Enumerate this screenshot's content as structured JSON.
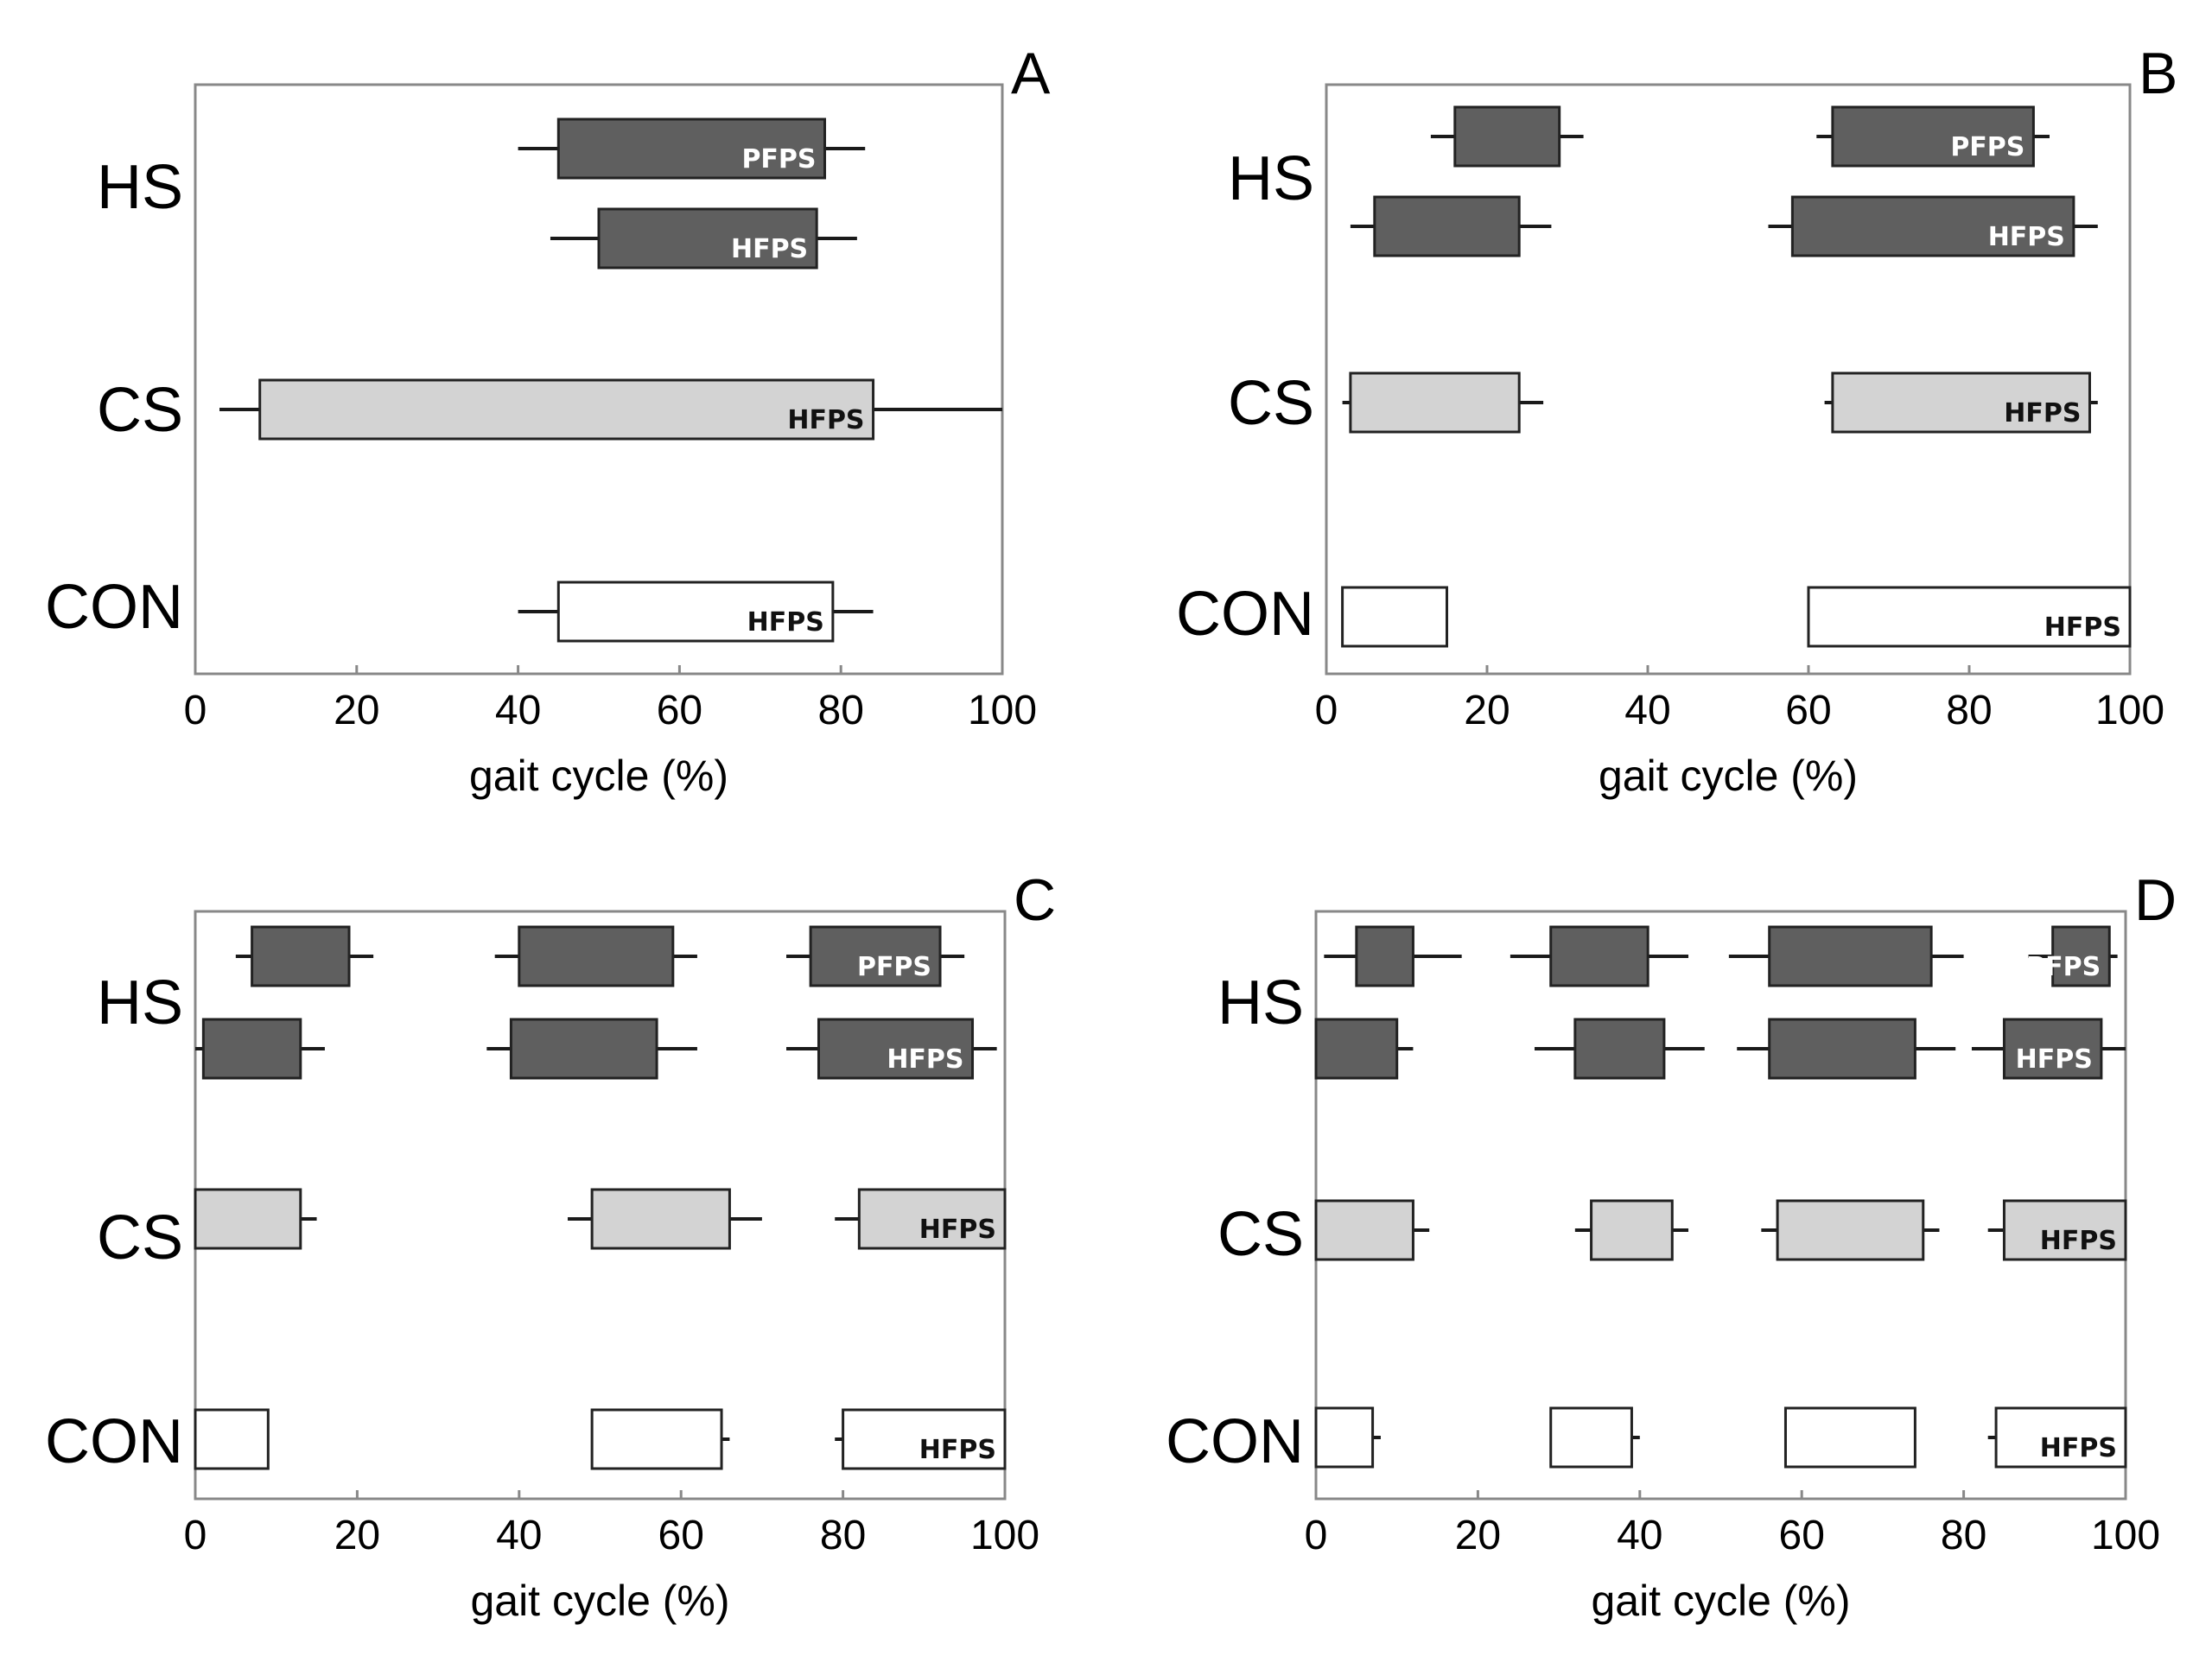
{
  "colors": {
    "HS": "#5f5f5f",
    "CS": "#d3d3d3",
    "CON": "#ffffff",
    "frame": "#888888",
    "whisker": "#1a1a1a"
  },
  "groups": [
    "HS",
    "CS",
    "CON"
  ],
  "chart_data": [
    {
      "panel": "A",
      "type": "bar",
      "xlabel": "gait cycle (%)",
      "xlim": [
        0,
        100
      ],
      "xticks": [
        "0",
        "20",
        "40",
        "60",
        "80",
        "100"
      ],
      "grid": false,
      "rows": [
        {
          "group": "HS",
          "label": "PFPS",
          "segments": [
            {
              "lo": 40,
              "start": 45,
              "end": 78,
              "hi": 83
            }
          ]
        },
        {
          "group": "HS",
          "label": "HFPS",
          "segments": [
            {
              "lo": 44,
              "start": 50,
              "end": 77,
              "hi": 82
            }
          ]
        },
        {
          "group": "CS",
          "label": "HFPS",
          "segments": [
            {
              "lo": 3,
              "start": 8,
              "end": 84,
              "hi": 100
            }
          ]
        },
        {
          "group": "CON",
          "label": "HFPS",
          "segments": [
            {
              "lo": 40,
              "start": 45,
              "end": 79,
              "hi": 84
            }
          ]
        }
      ]
    },
    {
      "panel": "B",
      "type": "bar",
      "xlabel": "gait cycle (%)",
      "xlim": [
        0,
        100
      ],
      "xticks": [
        "0",
        "20",
        "40",
        "60",
        "80",
        "100"
      ],
      "grid": false,
      "rows": [
        {
          "group": "HS",
          "label": "PFPS",
          "segments": [
            {
              "lo": 13,
              "start": 16,
              "end": 29,
              "hi": 32
            },
            {
              "lo": 61,
              "start": 63,
              "end": 88,
              "hi": 90
            }
          ]
        },
        {
          "group": "HS",
          "label": "HFPS",
          "segments": [
            {
              "lo": 3,
              "start": 6,
              "end": 24,
              "hi": 28
            },
            {
              "lo": 55,
              "start": 58,
              "end": 93,
              "hi": 96
            }
          ]
        },
        {
          "group": "CS",
          "label": "HFPS",
          "segments": [
            {
              "lo": 2,
              "start": 3,
              "end": 24,
              "hi": 27
            },
            {
              "lo": 62,
              "start": 63,
              "end": 95,
              "hi": 96
            }
          ]
        },
        {
          "group": "CON",
          "label": "HFPS",
          "segments": [
            {
              "lo": 2,
              "start": 2,
              "end": 15,
              "hi": 15
            },
            {
              "lo": 60,
              "start": 60,
              "end": 100,
              "hi": 100
            }
          ]
        }
      ]
    },
    {
      "panel": "C",
      "type": "bar",
      "xlabel": "gait cycle (%)",
      "xlim": [
        0,
        100
      ],
      "xticks": [
        "0",
        "20",
        "40",
        "60",
        "80",
        "100"
      ],
      "grid": false,
      "rows": [
        {
          "group": "HS",
          "label": "PFPS",
          "segments": [
            {
              "lo": 5,
              "start": 7,
              "end": 19,
              "hi": 22
            },
            {
              "lo": 37,
              "start": 40,
              "end": 59,
              "hi": 62
            },
            {
              "lo": 73,
              "start": 76,
              "end": 92,
              "hi": 95
            }
          ]
        },
        {
          "group": "HS",
          "label": "HFPS",
          "segments": [
            {
              "lo": 0,
              "start": 1,
              "end": 13,
              "hi": 16
            },
            {
              "lo": 36,
              "start": 39,
              "end": 57,
              "hi": 62
            },
            {
              "lo": 73,
              "start": 77,
              "end": 96,
              "hi": 99
            }
          ]
        },
        {
          "group": "CS",
          "label": "HFPS",
          "segments": [
            {
              "lo": 0,
              "start": 0,
              "end": 13,
              "hi": 15
            },
            {
              "lo": 46,
              "start": 49,
              "end": 66,
              "hi": 70
            },
            {
              "lo": 79,
              "start": 82,
              "end": 100,
              "hi": 100
            }
          ]
        },
        {
          "group": "CON",
          "label": "HFPS",
          "segments": [
            {
              "lo": 0,
              "start": 0,
              "end": 9,
              "hi": 9
            },
            {
              "lo": 49,
              "start": 49,
              "end": 65,
              "hi": 66
            },
            {
              "lo": 79,
              "start": 80,
              "end": 100,
              "hi": 100
            }
          ]
        }
      ]
    },
    {
      "panel": "D",
      "type": "bar",
      "xlabel": "gait cycle (%)",
      "xlim": [
        0,
        100
      ],
      "xticks": [
        "0",
        "20",
        "40",
        "60",
        "80",
        "100"
      ],
      "grid": false,
      "rows": [
        {
          "group": "HS",
          "label": "PFPS",
          "segments": [
            {
              "lo": 1,
              "start": 5,
              "end": 12,
              "hi": 18
            },
            {
              "lo": 24,
              "start": 29,
              "end": 41,
              "hi": 46
            },
            {
              "lo": 51,
              "start": 56,
              "end": 76,
              "hi": 80
            },
            {
              "lo": 88,
              "start": 91,
              "end": 98,
              "hi": 99
            }
          ]
        },
        {
          "group": "HS",
          "label": "HFPS",
          "segments": [
            {
              "lo": 0,
              "start": 0,
              "end": 10,
              "hi": 12
            },
            {
              "lo": 27,
              "start": 32,
              "end": 43,
              "hi": 48
            },
            {
              "lo": 52,
              "start": 56,
              "end": 74,
              "hi": 79
            },
            {
              "lo": 81,
              "start": 85,
              "end": 97,
              "hi": 100
            }
          ]
        },
        {
          "group": "CS",
          "label": "HFPS",
          "segments": [
            {
              "lo": 0,
              "start": 0,
              "end": 12,
              "hi": 14
            },
            {
              "lo": 32,
              "start": 34,
              "end": 44,
              "hi": 46
            },
            {
              "lo": 55,
              "start": 57,
              "end": 75,
              "hi": 77
            },
            {
              "lo": 83,
              "start": 85,
              "end": 100,
              "hi": 100
            }
          ]
        },
        {
          "group": "CON",
          "label": "HFPS",
          "segments": [
            {
              "lo": 0,
              "start": 0,
              "end": 7,
              "hi": 8
            },
            {
              "lo": 29,
              "start": 29,
              "end": 39,
              "hi": 40
            },
            {
              "lo": 58,
              "start": 58,
              "end": 74,
              "hi": 74
            },
            {
              "lo": 83,
              "start": 84,
              "end": 100,
              "hi": 100
            }
          ]
        }
      ]
    }
  ]
}
